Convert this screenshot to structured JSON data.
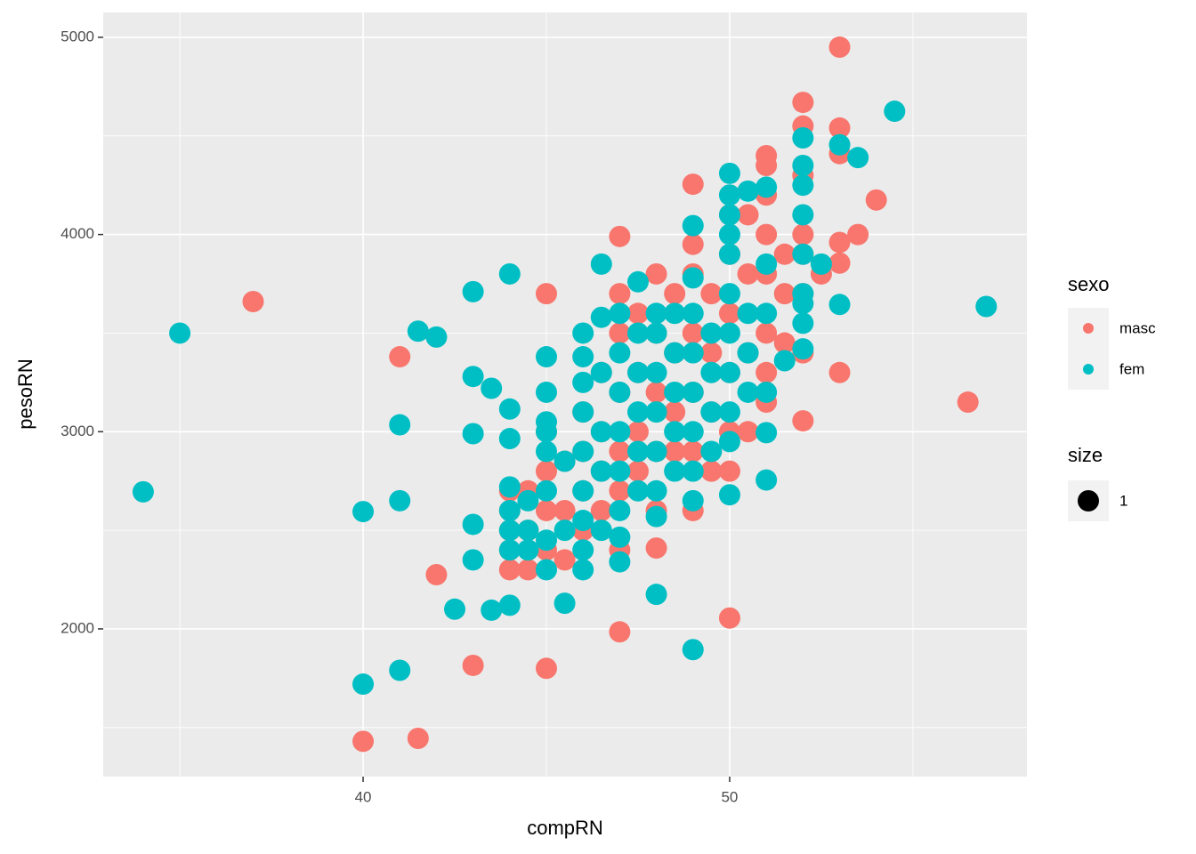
{
  "chart_data": {
    "type": "scatter",
    "x_label": "compRN",
    "y_label": "pesoRN",
    "xlim": [
      32.91,
      58.11
    ],
    "ylim": [
      1251,
      5126
    ],
    "xticks": [
      40,
      50
    ],
    "yticks": [
      2000,
      3000,
      4000,
      5000
    ],
    "x_minor_ticks": [
      35,
      45,
      55
    ],
    "y_minor_ticks": [
      1500,
      2500,
      3500,
      4500
    ],
    "grid": true,
    "legend_title": "sexo",
    "size_legend": {
      "title": "size",
      "label": 1
    },
    "series": [
      {
        "name": "masc",
        "color": "#F8766D",
        "x": [
          37,
          53,
          52,
          53,
          53,
          54,
          53.5,
          53,
          53,
          56.5,
          53,
          52,
          41,
          40,
          41.5,
          42,
          43,
          45,
          45,
          47,
          47,
          50,
          49,
          48,
          44,
          44,
          44,
          44,
          44,
          44.5,
          44.5,
          44.5,
          45,
          45,
          45,
          45,
          45.5,
          45.5,
          45.5,
          46,
          46,
          46,
          46,
          46.5,
          46.5,
          46.5,
          46.5,
          47,
          47,
          47,
          47,
          47,
          47,
          47.5,
          47.5,
          47.5,
          47.5,
          48,
          48,
          48,
          48,
          48,
          48.5,
          48.5,
          48.5,
          48.5,
          49,
          49,
          49,
          49,
          49,
          49,
          49.5,
          49.5,
          49.5,
          49.5,
          50,
          50,
          50,
          50,
          50,
          50,
          50.5,
          50.5,
          50.5,
          50.5,
          51,
          51,
          51,
          51,
          51,
          51,
          51,
          51,
          51.5,
          51.5,
          51.5,
          52,
          52,
          52,
          52,
          52,
          52,
          52.5
        ],
        "values": [
          3660,
          4950,
          4670,
          4540,
          4410,
          4175,
          4000,
          3960,
          3855,
          3150,
          3300,
          3055,
          3380,
          1430,
          1445,
          2275,
          1815,
          1800,
          3700,
          3990,
          1985,
          2055,
          4255,
          2410,
          2300,
          2400,
          2500,
          2600,
          2700,
          2300,
          2500,
          2700,
          2400,
          2600,
          2800,
          3000,
          2350,
          2600,
          2850,
          2500,
          2700,
          2900,
          3100,
          2600,
          2800,
          3000,
          3300,
          2400,
          2700,
          2900,
          3200,
          3500,
          3700,
          2800,
          3000,
          3300,
          3600,
          2600,
          2900,
          3200,
          3500,
          3800,
          2900,
          3100,
          3400,
          3700,
          2600,
          2900,
          3200,
          3500,
          3800,
          3950,
          2800,
          3100,
          3400,
          3700,
          2800,
          3000,
          3300,
          3600,
          3900,
          4100,
          3000,
          3400,
          3800,
          4100,
          3150,
          3300,
          3500,
          3800,
          4000,
          4200,
          4350,
          4400,
          3450,
          3700,
          3900,
          3400,
          3700,
          3900,
          4000,
          4300,
          4550,
          3800
        ]
      },
      {
        "name": "fem",
        "color": "#00BFC4",
        "x": [
          34,
          35,
          57,
          54.5,
          53.5,
          53,
          53,
          52,
          40,
          40,
          41,
          41,
          41,
          41.5,
          42,
          42.5,
          43,
          43,
          43,
          43,
          43,
          43.5,
          43.5,
          44,
          44,
          44,
          44,
          45.5,
          46,
          46.5,
          47.5,
          49,
          48,
          51,
          51,
          51.5,
          52.5,
          50,
          50.5,
          51,
          49,
          50,
          47,
          44,
          44,
          44,
          44,
          44.5,
          44.5,
          44.5,
          45,
          45,
          45,
          45,
          45,
          45,
          45,
          45,
          45.5,
          45.5,
          46,
          46,
          46,
          46,
          46,
          46,
          46,
          46,
          46.5,
          46.5,
          46.5,
          46.5,
          46.5,
          47,
          47,
          47,
          47,
          47,
          47,
          47,
          47.5,
          47.5,
          47.5,
          47.5,
          47.5,
          48,
          48,
          48,
          48,
          48,
          48,
          48,
          48.5,
          48.5,
          48.5,
          48.5,
          48.5,
          49,
          49,
          49,
          49,
          49,
          49,
          49,
          49.5,
          49.5,
          49.5,
          49.5,
          50,
          50,
          50,
          50,
          50,
          50,
          50,
          50,
          50,
          50.5,
          50.5,
          50.5,
          51,
          51,
          51,
          52,
          52,
          52,
          52,
          52,
          52,
          52,
          52
        ],
        "values": [
          2695,
          3500,
          3635,
          4625,
          4390,
          4455,
          3645,
          4490,
          2595,
          1720,
          3035,
          2650,
          1790,
          3510,
          3480,
          2100,
          3710,
          3280,
          2990,
          2530,
          2350,
          3220,
          2095,
          3800,
          3115,
          2965,
          2120,
          2130,
          2300,
          3850,
          3760,
          1895,
          2175,
          2755,
          2995,
          3360,
          3850,
          4310,
          4220,
          4240,
          4045,
          2680,
          2465,
          2400,
          2500,
          2600,
          2720,
          2400,
          2500,
          2650,
          2300,
          2450,
          2700,
          2900,
          3000,
          3050,
          3200,
          3380,
          2500,
          2850,
          2400,
          2550,
          2700,
          2900,
          3100,
          3250,
          3380,
          3500,
          2500,
          2800,
          3000,
          3300,
          3580,
          2340,
          2600,
          2800,
          3000,
          3200,
          3400,
          3600,
          2700,
          2900,
          3100,
          3300,
          3500,
          2570,
          2700,
          2900,
          3100,
          3300,
          3500,
          3600,
          2800,
          3000,
          3200,
          3400,
          3600,
          2650,
          2800,
          3000,
          3200,
          3400,
          3600,
          3780,
          2900,
          3100,
          3300,
          3500,
          2950,
          3100,
          3300,
          3500,
          3700,
          3900,
          4000,
          4100,
          4200,
          3200,
          3400,
          3600,
          3200,
          3600,
          3850,
          3420,
          3550,
          3650,
          3700,
          3900,
          4100,
          4250,
          4350
        ]
      }
    ]
  }
}
